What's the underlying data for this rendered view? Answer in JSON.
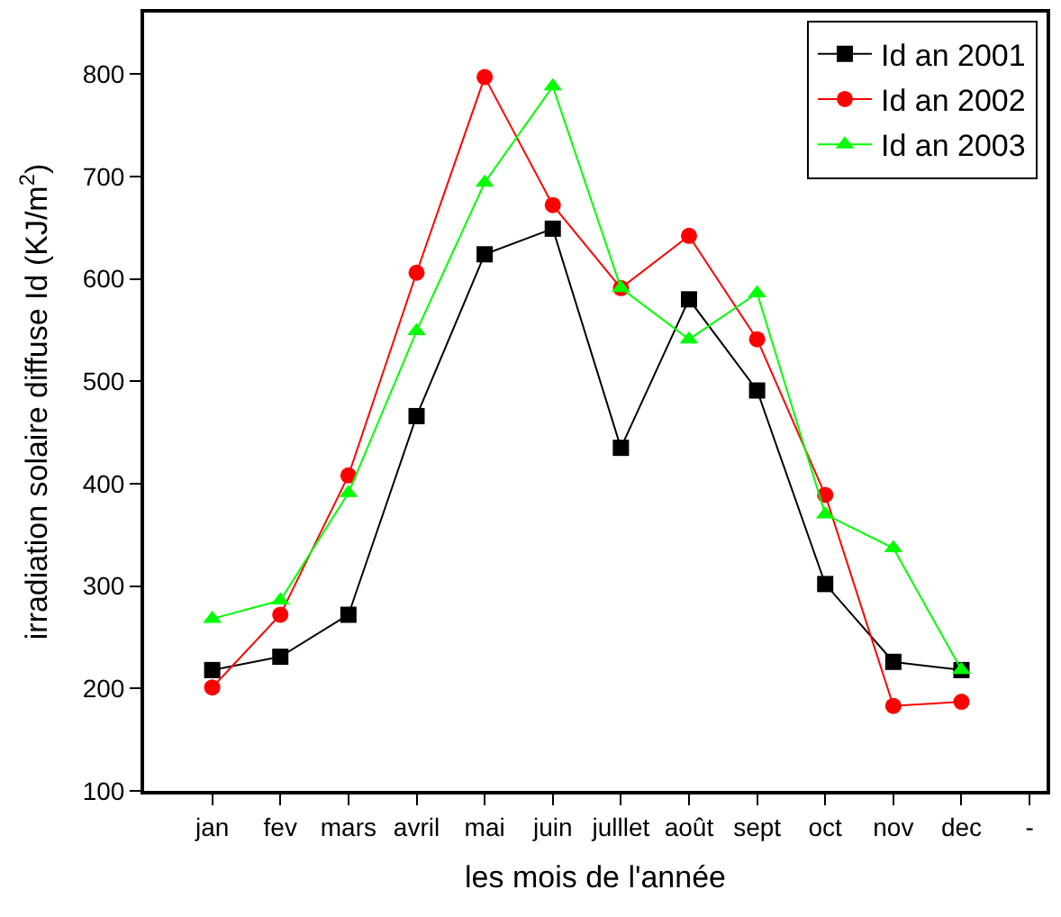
{
  "chart_data": {
    "type": "line",
    "xlabel": "les mois de l'année",
    "ylabel": "irradiation solaire diffuse Id (KJ/m$^{2}$)",
    "categories": [
      "jan",
      "fev",
      "mars",
      "avril",
      "mai",
      "juin",
      "julllet",
      "août",
      "sept",
      "oct",
      "nov",
      "dec",
      "-"
    ],
    "series": [
      {
        "name": "Id an 2001",
        "color": "#000000",
        "marker": "square",
        "values": [
          218,
          231,
          272,
          466,
          624,
          649,
          435,
          580,
          491,
          302,
          226,
          218,
          null
        ]
      },
      {
        "name": "Id an 2002",
        "color": "#ff0000",
        "marker": "circle",
        "values": [
          201,
          272,
          408,
          606,
          797,
          672,
          591,
          642,
          541,
          389,
          183,
          187,
          null
        ]
      },
      {
        "name": "Id an 2003",
        "color": "#00ff00",
        "marker": "triangle",
        "values": [
          268,
          286,
          391,
          549,
          694,
          788,
          591,
          541,
          586,
          370,
          337,
          218,
          null
        ]
      }
    ],
    "ylim": [
      100,
      860
    ],
    "yticks": [
      100,
      200,
      300,
      400,
      500,
      600,
      700,
      800
    ],
    "legend": "top right",
    "line_style": "solid"
  }
}
